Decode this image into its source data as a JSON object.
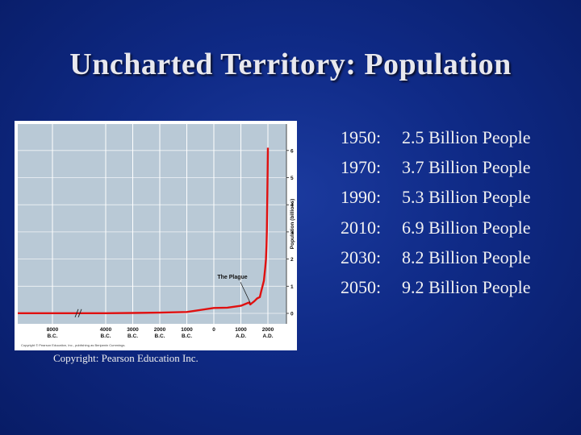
{
  "slide": {
    "title": "Uncharted Territory: Population",
    "copyright": "Copyright: Pearson Education Inc."
  },
  "population_list": [
    {
      "year": "1950:",
      "value": "2.5 Billion People"
    },
    {
      "year": "1970:",
      "value": "3.7 Billion People"
    },
    {
      "year": "1990:",
      "value": "5.3 Billion People"
    },
    {
      "year": "2010:",
      "value": "6.9 Billion People"
    },
    {
      "year": "2030:",
      "value": "8.2 Billion People"
    },
    {
      "year": "2050:",
      "value": "9.2 Billion People"
    }
  ],
  "colors": {
    "background": "#0f2a86",
    "plot_area": "#b9c9d6",
    "line": "#e01010",
    "grid": "#ffffff"
  },
  "chart_data": {
    "type": "line",
    "title": "",
    "xlabel": "",
    "ylabel": "Population (billions)",
    "y_axis_position": "right",
    "ylim": [
      0,
      6.5
    ],
    "y_ticks": [
      "0",
      "1",
      "2",
      "3",
      "4",
      "5",
      "6"
    ],
    "x_tick_labels": [
      [
        "8000",
        "B.C."
      ],
      [
        "4000",
        "B.C."
      ],
      [
        "3000",
        "B.C."
      ],
      [
        "2000",
        "B.C."
      ],
      [
        "1000",
        "B.C."
      ],
      [
        "0",
        ""
      ],
      [
        "1000",
        "A.D."
      ],
      [
        "2000",
        "A.D."
      ]
    ],
    "axis_break": "between 8000 B.C. and 4000 B.C.",
    "grid": true,
    "annotation": "The Plague",
    "credit": "Copyright © Pearson Education, Inc., publishing as Benjamin Cummings.",
    "series": [
      {
        "points": [
          [
            -10000,
            0.005
          ],
          [
            -8000,
            0.005
          ],
          [
            -4000,
            0.007
          ],
          [
            -3000,
            0.014
          ],
          [
            -2000,
            0.027
          ],
          [
            -1000,
            0.05
          ],
          [
            0,
            0.2
          ],
          [
            500,
            0.21
          ],
          [
            1000,
            0.28
          ],
          [
            1300,
            0.4
          ],
          [
            1350,
            0.33
          ],
          [
            1400,
            0.37
          ],
          [
            1500,
            0.45
          ],
          [
            1600,
            0.55
          ],
          [
            1700,
            0.6
          ],
          [
            1750,
            0.8
          ],
          [
            1800,
            1.0
          ],
          [
            1850,
            1.2
          ],
          [
            1900,
            1.65
          ],
          [
            1927,
            2.0
          ],
          [
            1950,
            2.5
          ],
          [
            1960,
            3.0
          ],
          [
            1970,
            3.7
          ],
          [
            1980,
            4.4
          ],
          [
            1990,
            5.3
          ],
          [
            2000,
            6.1
          ]
        ]
      }
    ]
  }
}
